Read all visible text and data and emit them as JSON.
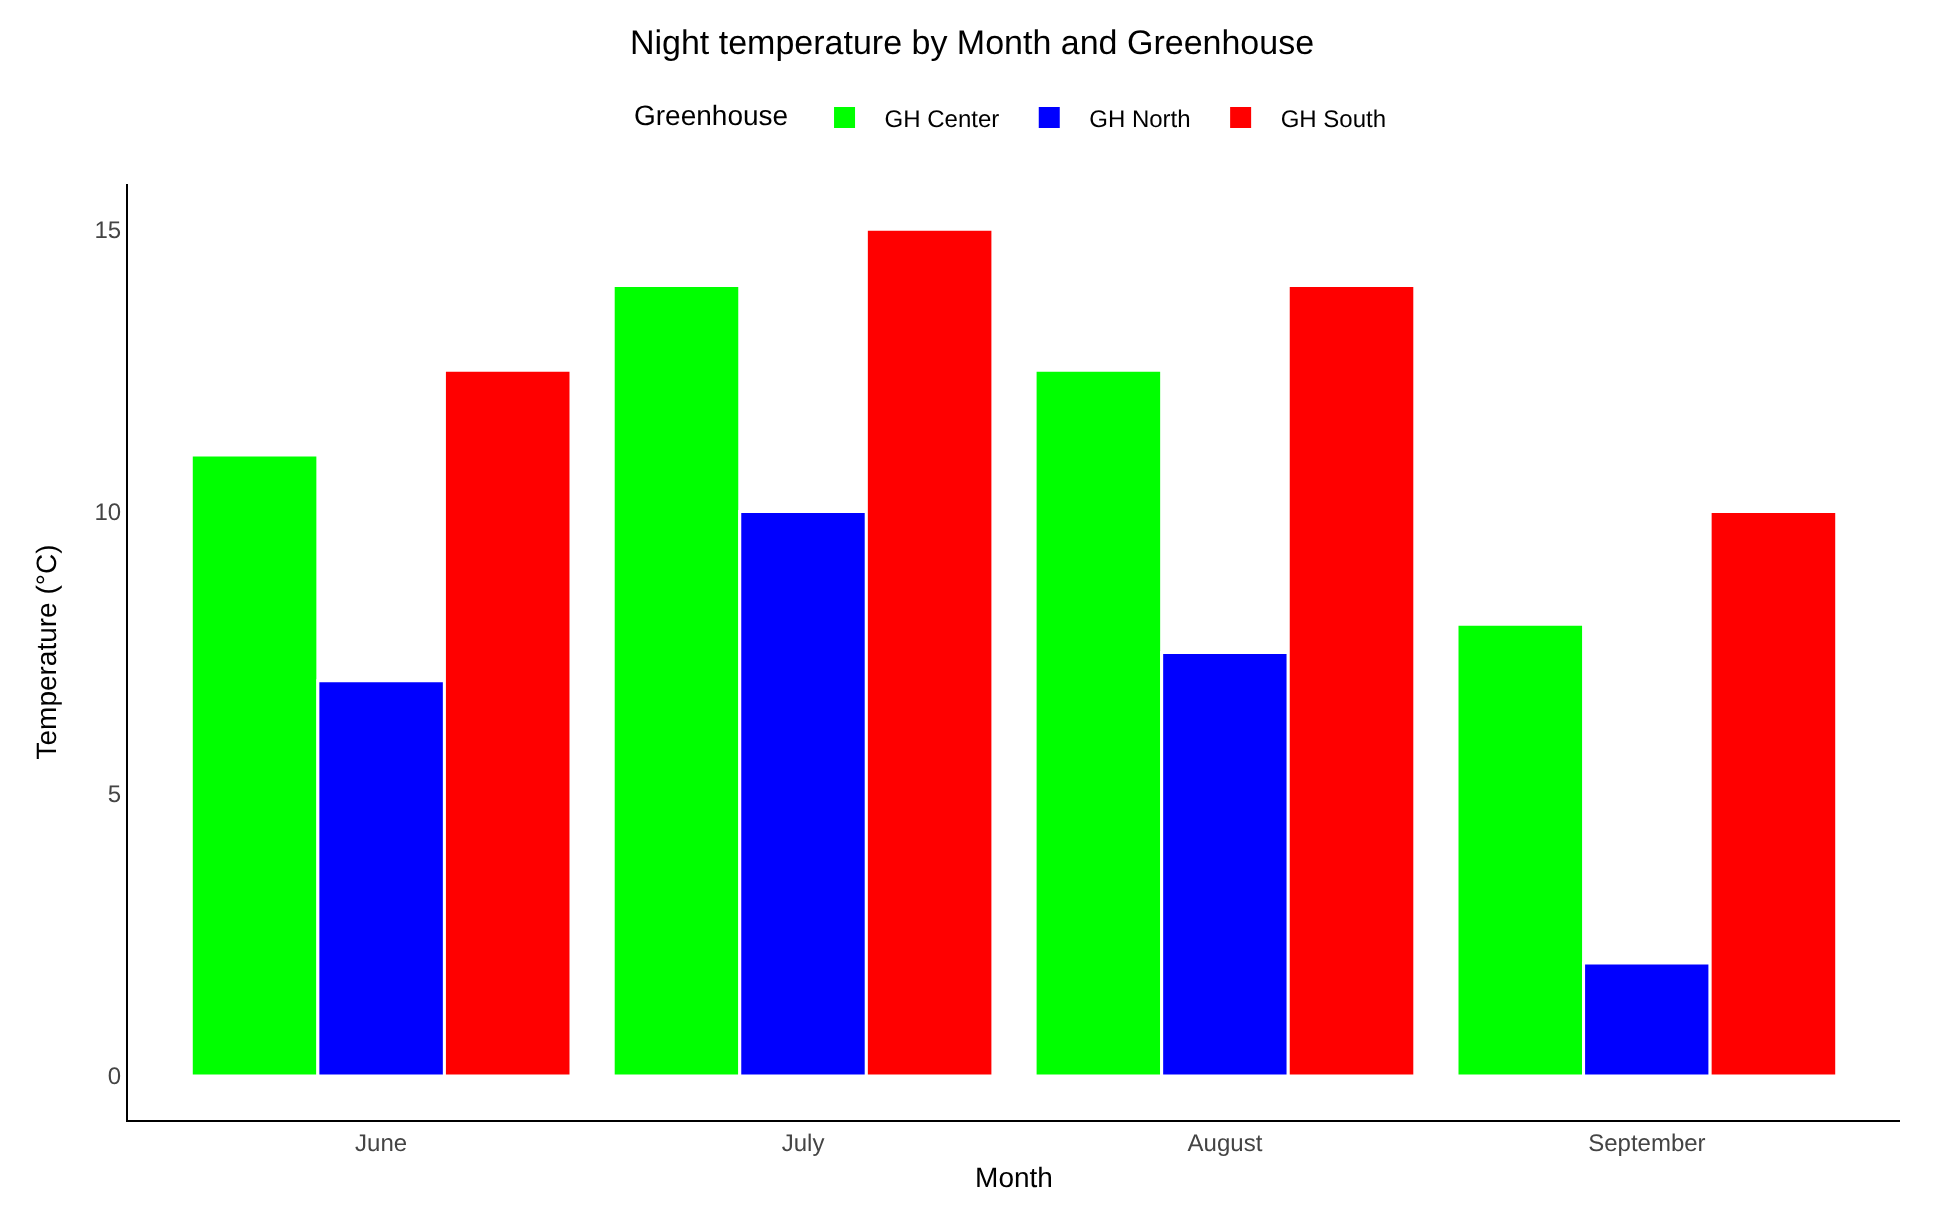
{
  "chart_data": {
    "type": "bar",
    "title": "Night temperature by Month and Greenhouse",
    "xlabel": "Month",
    "ylabel": "Temperature (°C)",
    "legend_title": "Greenhouse",
    "categories": [
      "June",
      "July",
      "August",
      "September"
    ],
    "series": [
      {
        "name": "GH Center",
        "color": "#00ff00",
        "values": [
          11,
          14,
          12.5,
          8
        ]
      },
      {
        "name": "GH North",
        "color": "#0000ff",
        "values": [
          7,
          10,
          7.5,
          2
        ]
      },
      {
        "name": "GH South",
        "color": "#ff0000",
        "values": [
          12.5,
          15,
          14,
          10
        ]
      }
    ],
    "ylim": [
      -0.78,
      15.8
    ],
    "yticks": [
      0,
      5,
      10,
      15
    ],
    "legend": "top"
  }
}
